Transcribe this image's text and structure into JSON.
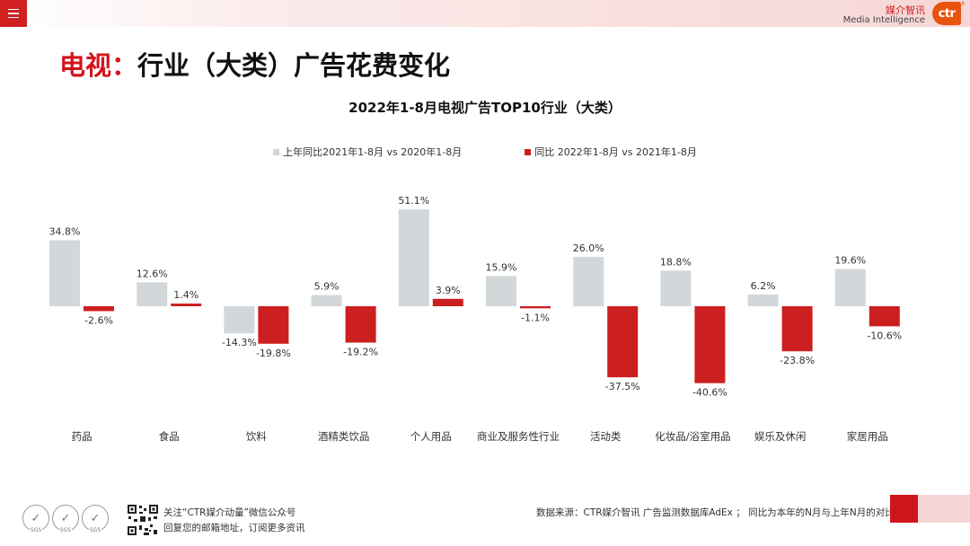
{
  "header": {
    "menu_icon": "hamburger-menu-icon",
    "brand_cn": "媒介智讯",
    "brand_en": "Media Intelligence",
    "logo_text": "ctr",
    "logo_reg": "®",
    "logo_color": "#e8530e"
  },
  "page_title": {
    "highlight": "电视：",
    "rest": "行业（大类）广告花费变化"
  },
  "colors": {
    "series1": "#d2d7da",
    "series2": "#cc1f1f",
    "accent": "#d0161c"
  },
  "chart_data": {
    "type": "bar",
    "title": "2022年1-8月电视广告TOP10行业（大类）",
    "xlabel": "",
    "ylabel": "",
    "grid": false,
    "legend_position": "top",
    "value_suffix": "%",
    "ylim": [
      -45,
      55
    ],
    "categories": [
      "药品",
      "食品",
      "饮料",
      "酒精类饮品",
      "个人用品",
      "商业及服务性行业",
      "活动类",
      "化妆品/浴室用品",
      "娱乐及休闲",
      "家居用品"
    ],
    "series": [
      {
        "name": "上年同比2021年1-8月  vs  2020年1-8月",
        "values": [
          34.8,
          12.6,
          -14.3,
          5.9,
          51.1,
          15.9,
          26.0,
          18.8,
          6.2,
          19.6
        ]
      },
      {
        "name": "同比 2022年1-8月  vs  2021年1-8月",
        "values": [
          -2.6,
          1.4,
          -19.8,
          -19.2,
          3.9,
          -1.1,
          -37.5,
          -40.6,
          -23.8,
          -10.6
        ]
      }
    ]
  },
  "footer": {
    "cert_mark": "✓",
    "cert_label": "SGS",
    "follow_line1": "关注“CTR媒介动量”微信公众号",
    "follow_line2": "回复您的邮箱地址，订阅更多资讯",
    "source": "数据来源：CTR媒介智讯 广告监测数据库AdEx ；  同比为本年的N月与上年N月的对比"
  }
}
